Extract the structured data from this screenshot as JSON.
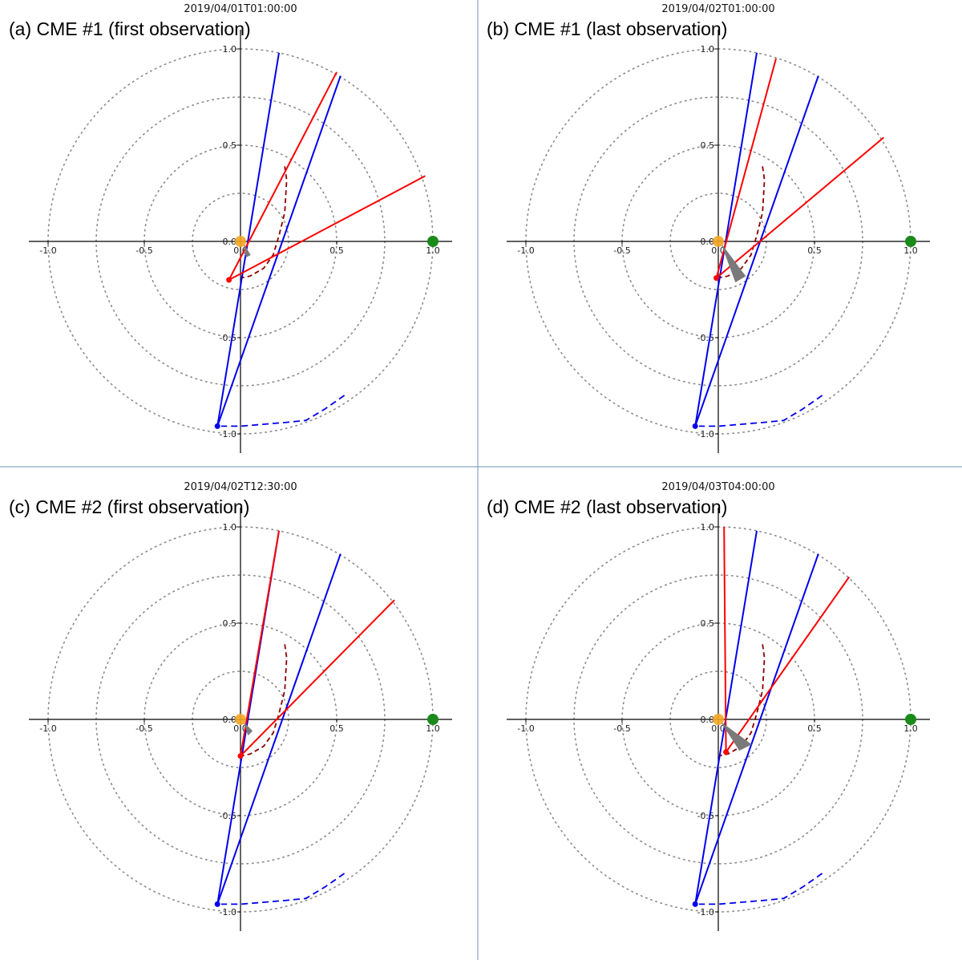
{
  "colors": {
    "red_line": "#ff0000",
    "blue_line": "#0000ee",
    "dashed_red": "#8b0000",
    "dashed_blue": "#0000ee",
    "sun": "#f5a623",
    "earth": "#1a8a1a",
    "cone": "#7a7a7a",
    "ring": "#8a8a8a",
    "panel_divider": "#6f93b8"
  },
  "chart_data": [
    {
      "panel": "a",
      "type": "line",
      "title": "(a) CME #1 (first observation)",
      "timestamp": "2019/04/01T01:00:00",
      "x_ticks": [
        "-1.0",
        "-0.5",
        "0.0",
        "0.5",
        "1.0"
      ],
      "y_ticks": [
        "1.0",
        "0.5",
        "0.0",
        "-0.5",
        "-1.0"
      ],
      "xlim": [
        -1.1,
        1.1
      ],
      "ylim": [
        -1.1,
        1.1
      ],
      "rings_au": [
        0.25,
        0.5,
        0.75,
        1.0
      ],
      "sun": [
        0,
        0
      ],
      "earth": [
        1.0,
        0
      ],
      "red_origin": [
        -0.06,
        -0.2
      ],
      "red_ends": [
        [
          0.5,
          0.88
        ],
        [
          0.96,
          0.34
        ]
      ],
      "blue_origin": [
        -0.12,
        -0.96
      ],
      "blue_ends": [
        [
          0.2,
          0.98
        ],
        [
          0.52,
          0.86
        ]
      ],
      "cone_apex": [
        0.02,
        -0.02
      ],
      "cone_base": [
        [
          0.03,
          -0.08
        ],
        [
          0.05,
          -0.07
        ]
      ],
      "dashed_red_path": [
        [
          0.23,
          0.39
        ],
        [
          0.24,
          0.32
        ],
        [
          0.23,
          0.15
        ],
        [
          0.2,
          0.03
        ],
        [
          0.17,
          -0.07
        ],
        [
          0.12,
          -0.14
        ],
        [
          0.05,
          -0.18
        ],
        [
          0.0,
          -0.19
        ]
      ],
      "dashed_blue_path": [
        [
          0.54,
          -0.8
        ],
        [
          0.44,
          -0.87
        ],
        [
          0.34,
          -0.93
        ],
        [
          0.24,
          -0.94
        ],
        [
          0.12,
          -0.95
        ],
        [
          0.0,
          -0.96
        ],
        [
          -0.1,
          -0.96
        ]
      ]
    },
    {
      "panel": "b",
      "type": "line",
      "title": "(b) CME #1 (last observation)",
      "timestamp": "2019/04/02T01:00:00",
      "x_ticks": [
        "-1.0",
        "-0.5",
        "0.0",
        "0.5",
        "1.0"
      ],
      "y_ticks": [
        "1.0",
        "0.5",
        "0.0",
        "-0.5",
        "-1.0"
      ],
      "xlim": [
        -1.1,
        1.1
      ],
      "ylim": [
        -1.1,
        1.1
      ],
      "rings_au": [
        0.25,
        0.5,
        0.75,
        1.0
      ],
      "sun": [
        0,
        0
      ],
      "earth": [
        1.0,
        0
      ],
      "red_origin": [
        -0.01,
        -0.19
      ],
      "red_ends": [
        [
          0.3,
          0.95
        ],
        [
          0.86,
          0.54
        ]
      ],
      "blue_origin": [
        -0.12,
        -0.96
      ],
      "blue_ends": [
        [
          0.2,
          0.98
        ],
        [
          0.52,
          0.86
        ]
      ],
      "cone_apex": [
        0.02,
        -0.02
      ],
      "cone_base": [
        [
          0.09,
          -0.21
        ],
        [
          0.14,
          -0.18
        ]
      ],
      "dashed_red_path": [
        [
          0.23,
          0.39
        ],
        [
          0.24,
          0.32
        ],
        [
          0.23,
          0.15
        ],
        [
          0.2,
          0.03
        ],
        [
          0.17,
          -0.07
        ],
        [
          0.12,
          -0.14
        ],
        [
          0.05,
          -0.18
        ],
        [
          0.0,
          -0.19
        ]
      ],
      "dashed_blue_path": [
        [
          0.54,
          -0.8
        ],
        [
          0.44,
          -0.87
        ],
        [
          0.34,
          -0.93
        ],
        [
          0.24,
          -0.94
        ],
        [
          0.12,
          -0.95
        ],
        [
          0.0,
          -0.96
        ],
        [
          -0.1,
          -0.96
        ]
      ]
    },
    {
      "panel": "c",
      "type": "line",
      "title": "(c) CME #2 (first observation)",
      "timestamp": "2019/04/02T12:30:00",
      "x_ticks": [
        "-1.0",
        "-0.5",
        "0.0",
        "0.5",
        "1.0"
      ],
      "y_ticks": [
        "1.0",
        "0.5",
        "0.0",
        "-0.5",
        "-1.0"
      ],
      "xlim": [
        -1.1,
        1.1
      ],
      "ylim": [
        -1.1,
        1.1
      ],
      "rings_au": [
        0.25,
        0.5,
        0.75,
        1.0
      ],
      "sun": [
        0,
        0
      ],
      "earth": [
        1.0,
        0
      ],
      "red_origin": [
        0.0,
        -0.19
      ],
      "red_ends": [
        [
          0.2,
          0.98
        ],
        [
          0.8,
          0.62
        ]
      ],
      "blue_origin": [
        -0.12,
        -0.96
      ],
      "blue_ends": [
        [
          0.2,
          0.98
        ],
        [
          0.52,
          0.86
        ]
      ],
      "cone_apex": [
        0.02,
        -0.02
      ],
      "cone_base": [
        [
          0.04,
          -0.08
        ],
        [
          0.06,
          -0.06
        ]
      ],
      "dashed_red_path": [
        [
          0.23,
          0.39
        ],
        [
          0.24,
          0.32
        ],
        [
          0.23,
          0.15
        ],
        [
          0.2,
          0.03
        ],
        [
          0.17,
          -0.07
        ],
        [
          0.12,
          -0.14
        ],
        [
          0.05,
          -0.18
        ],
        [
          0.0,
          -0.19
        ]
      ],
      "dashed_blue_path": [
        [
          0.54,
          -0.8
        ],
        [
          0.44,
          -0.87
        ],
        [
          0.34,
          -0.93
        ],
        [
          0.24,
          -0.94
        ],
        [
          0.12,
          -0.95
        ],
        [
          0.0,
          -0.96
        ],
        [
          -0.1,
          -0.96
        ]
      ]
    },
    {
      "panel": "d",
      "type": "line",
      "title": "(d) CME #2 (last observation)",
      "timestamp": "2019/04/03T04:00:00",
      "x_ticks": [
        "-1.0",
        "-0.5",
        "0.0",
        "0.5",
        "1.0"
      ],
      "y_ticks": [
        "1.0",
        "0.5",
        "0.0",
        "-0.5",
        "-1.0"
      ],
      "xlim": [
        -1.1,
        1.1
      ],
      "ylim": [
        -1.1,
        1.1
      ],
      "rings_au": [
        0.25,
        0.5,
        0.75,
        1.0
      ],
      "sun": [
        0,
        0
      ],
      "earth": [
        1.0,
        0
      ],
      "red_origin": [
        0.04,
        -0.17
      ],
      "red_ends": [
        [
          0.03,
          1.0
        ],
        [
          0.68,
          0.74
        ]
      ],
      "blue_origin": [
        -0.12,
        -0.96
      ],
      "blue_ends": [
        [
          0.2,
          0.98
        ],
        [
          0.52,
          0.86
        ]
      ],
      "cone_apex": [
        0.02,
        -0.02
      ],
      "cone_base": [
        [
          0.11,
          -0.16
        ],
        [
          0.17,
          -0.13
        ]
      ],
      "dashed_red_path": [
        [
          0.23,
          0.39
        ],
        [
          0.24,
          0.32
        ],
        [
          0.23,
          0.15
        ],
        [
          0.2,
          0.03
        ],
        [
          0.17,
          -0.07
        ],
        [
          0.12,
          -0.14
        ],
        [
          0.05,
          -0.18
        ],
        [
          0.0,
          -0.19
        ]
      ],
      "dashed_blue_path": [
        [
          0.54,
          -0.8
        ],
        [
          0.44,
          -0.87
        ],
        [
          0.34,
          -0.93
        ],
        [
          0.24,
          -0.94
        ],
        [
          0.12,
          -0.95
        ],
        [
          0.0,
          -0.96
        ],
        [
          -0.1,
          -0.96
        ]
      ]
    }
  ]
}
